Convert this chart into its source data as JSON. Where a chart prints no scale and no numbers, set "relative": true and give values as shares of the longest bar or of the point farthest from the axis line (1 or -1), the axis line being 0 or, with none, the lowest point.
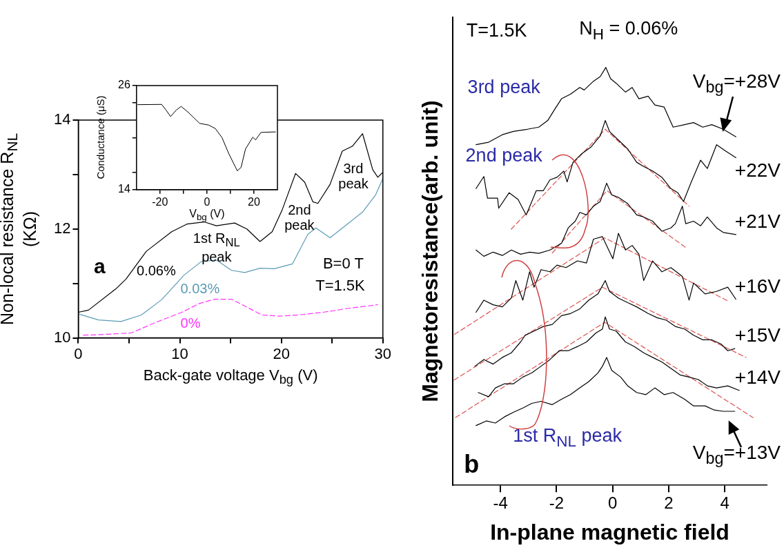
{
  "chart_data": [
    {
      "type": "line",
      "xlabel": "Back-gate voltage V$_{bg}$ (V)",
      "ylabel": "Non-local resistance R$_{NL}$ (KΩ)",
      "xlim": [
        0,
        30
      ],
      "ylim": [
        10,
        14
      ],
      "xticks": [
        0,
        {
          "value": 5,
          "label": null
        },
        10,
        {
          "value": 15,
          "label": null
        },
        20,
        {
          "value": 25,
          "label": null
        },
        30
      ],
      "yticks": [
        10,
        {
          "value": 11,
          "label": null
        },
        12,
        {
          "value": 13,
          "label": null
        },
        14
      ],
      "annotations": [
        "a",
        "B=0 T",
        "T=1.5K",
        "1st R$_{NL}$ peak",
        "2nd peak",
        "3rd peak"
      ],
      "series": [
        {
          "name": "0.06%",
          "color": "#000000",
          "x": [
            0,
            1,
            3.7,
            4.7,
            6.7,
            9.2,
            10.7,
            12.4,
            13.6,
            15.4,
            16.6,
            17.9,
            19.1,
            20.1,
            21.4,
            22.3,
            23.1,
            23.6,
            24.8,
            26.0,
            27.0,
            28.0,
            29.0,
            29.5,
            30
          ],
          "values": [
            10.47,
            10.51,
            10.9,
            11.08,
            11.59,
            11.95,
            12.09,
            12.13,
            12.06,
            12.11,
            12.0,
            11.77,
            11.95,
            12.36,
            13.02,
            12.86,
            12.5,
            12.47,
            12.82,
            13.43,
            13.52,
            13.75,
            13.09,
            12.95,
            13.04
          ]
        },
        {
          "name": "0.03%",
          "color": "#5b9bb5",
          "x": [
            0,
            2,
            4.2,
            6.2,
            8.2,
            10.4,
            12.1,
            13.6,
            15.1,
            16.4,
            17.9,
            19.3,
            21.1,
            22.6,
            23.4,
            24.8,
            26.5,
            28.0,
            29.3,
            30
          ],
          "values": [
            10.44,
            10.33,
            10.3,
            10.42,
            10.7,
            11.15,
            11.4,
            11.43,
            11.24,
            11.2,
            11.28,
            11.27,
            11.36,
            11.9,
            12.02,
            11.84,
            12.09,
            12.31,
            12.63,
            12.93
          ]
        },
        {
          "name": "0%",
          "color": "#ff33ff",
          "line_style": "dashed",
          "x": [
            0.5,
            2.2,
            5.2,
            7.7,
            10.2,
            11.9,
            13.4,
            15.1,
            18.1,
            19.8,
            21.6,
            24.1,
            26.5,
            29.5
          ],
          "values": [
            10.05,
            10.06,
            10.09,
            10.29,
            10.47,
            10.63,
            10.71,
            10.71,
            10.42,
            10.4,
            10.42,
            10.47,
            10.54,
            10.61
          ]
        }
      ]
    },
    {
      "type": "line",
      "xlabel": "V$_{bg}$ (V)",
      "ylabel": "Conductance (μS)",
      "xlim": [
        -30,
        30
      ],
      "ylim": [
        14,
        26
      ],
      "xticks": [
        -20,
        {
          "value": -10,
          "label": null
        },
        0,
        {
          "value": 10,
          "label": null
        },
        20
      ],
      "yticks": [
        14,
        {
          "value": 16,
          "label": null
        },
        {
          "value": 20,
          "label": null
        },
        {
          "value": 24,
          "label": null
        },
        26
      ],
      "series": [
        {
          "color": "#000000",
          "x": [
            -29.5,
            -19.3,
            -17.4,
            -15.5,
            -13.1,
            -11,
            -7.9,
            -3.1,
            0.7,
            3.5,
            6.4,
            9.2,
            12.9,
            14.5,
            16.4,
            19.5,
            20.7,
            23.0,
            29.2
          ],
          "values": [
            23.8,
            23.83,
            23.17,
            22.43,
            23.17,
            23.6,
            22.9,
            21.64,
            21.45,
            21.06,
            20.0,
            18.2,
            16.17,
            16.56,
            18.68,
            20.05,
            19.74,
            20.6,
            20.66
          ]
        }
      ]
    },
    {
      "type": "line",
      "relative": true,
      "xlabel": "In-plane magnetic field",
      "ylabel": "Magnetoresistance(arb. unit)",
      "xlim": [
        -5.7,
        5.5
      ],
      "xticks": [
        -4,
        -2,
        0,
        2,
        4
      ],
      "annotations": [
        "T=1.5K",
        "N$_{H}$ = 0.06%",
        "b",
        "3rd peak",
        "2nd peak",
        "1st R$_{NL}$ peak"
      ],
      "series": [
        {
          "name": "V$_{bg}$=+28V",
          "color": "#000000",
          "x": [
            -4.87,
            -4.42,
            -3.93,
            -3.53,
            -3.04,
            -2.63,
            -2.31,
            -2.07,
            -1.82,
            -1.5,
            -1.17,
            -1.01,
            -0.68,
            -0.44,
            -0.24,
            -0.07,
            0.13,
            0.46,
            0.7,
            0.94,
            1.27,
            1.51,
            1.84,
            2.16,
            2.57,
            2.89,
            3.22,
            3.54,
            3.95,
            4.4
          ],
          "values": [
            0.815,
            0.821,
            0.839,
            0.847,
            0.852,
            0.857,
            0.873,
            0.899,
            0.925,
            0.936,
            0.952,
            0.946,
            0.967,
            0.978,
            1,
            0.973,
            0.962,
            0.941,
            0.952,
            0.925,
            0.931,
            0.91,
            0.905,
            0.857,
            0.863,
            0.868,
            0.857,
            0.863,
            0.852,
            0.834
          ]
        },
        {
          "name": "+22V",
          "color": "#000000",
          "x": [
            -4.87,
            -4.59,
            -4.46,
            -4.1,
            -4.06,
            -3.69,
            -3.37,
            -3.08,
            -2.72,
            -2.47,
            -2.23,
            -1.98,
            -1.74,
            -1.62,
            -1.41,
            -1.09,
            -0.76,
            -0.44,
            -0.26,
            -0.11,
            0.21,
            0.54,
            0.86,
            1.11,
            1.43,
            1.76,
            2.08,
            2.33,
            2.53,
            2.81,
            3.14,
            3.38,
            3.71,
            4.03,
            4.4
          ],
          "values": [
            0.71,
            0.739,
            0.687,
            0.687,
            0.663,
            0.7,
            0.684,
            0.647,
            0.705,
            0.705,
            0.731,
            0.737,
            0.752,
            0.726,
            0.773,
            0.794,
            0.81,
            0.836,
            0.873,
            0.847,
            0.826,
            0.805,
            0.773,
            0.763,
            0.752,
            0.737,
            0.71,
            0.7,
            0.679,
            0.726,
            0.778,
            0.758,
            0.815,
            0.8,
            0.784
          ]
        },
        {
          "name": "+21V",
          "color": "#000000",
          "x": [
            -4.87,
            -4.59,
            -4.26,
            -3.93,
            -3.61,
            -3.28,
            -2.96,
            -2.63,
            -2.23,
            -1.82,
            -1.58,
            -1.33,
            -1.17,
            -0.93,
            -0.68,
            -0.44,
            -0.21,
            -0.03,
            0.21,
            0.54,
            0.86,
            1.11,
            1.43,
            1.76,
            2.08,
            2.24,
            2.49,
            2.61,
            2.89,
            3.14,
            3.38,
            3.71,
            3.95,
            4.4
          ],
          "values": [
            0.563,
            0.548,
            0.558,
            0.55,
            0.563,
            0.553,
            0.558,
            0.555,
            0.563,
            0.579,
            0.616,
            0.632,
            0.653,
            0.647,
            0.668,
            0.679,
            0.723,
            0.695,
            0.689,
            0.674,
            0.647,
            0.642,
            0.632,
            0.608,
            0.616,
            0.626,
            0.668,
            0.626,
            0.632,
            0.621,
            0.642,
            0.616,
            0.605,
            0.6
          ]
        },
        {
          "name": "+16V",
          "color": "#000000",
          "x": [
            -4.87,
            -4.59,
            -4.26,
            -3.93,
            -3.61,
            -3.45,
            -3.2,
            -2.96,
            -2.8,
            -2.55,
            -2.23,
            -1.98,
            -1.66,
            -1.25,
            -0.93,
            -0.68,
            -0.36,
            0.01,
            0.21,
            0.46,
            0.7,
            0.94,
            1.11,
            1.43,
            1.76,
            2.08,
            2.49,
            2.73,
            2.89,
            3.3,
            3.71,
            4.11,
            4.4
          ],
          "values": [
            0.414,
            0.443,
            0.432,
            0.427,
            0.448,
            0.49,
            0.443,
            0.511,
            0.474,
            0.516,
            0.511,
            0.527,
            0.521,
            0.537,
            0.532,
            0.589,
            0.595,
            0.542,
            0.603,
            0.563,
            0.574,
            0.553,
            0.49,
            0.537,
            0.511,
            0.521,
            0.5,
            0.443,
            0.484,
            0.458,
            0.464,
            0.474,
            0.445
          ]
        },
        {
          "name": "+15V",
          "color": "#000000",
          "x": [
            -4.91,
            -4.59,
            -4.26,
            -3.93,
            -3.61,
            -3.28,
            -3.12,
            -2.8,
            -2.47,
            -2.15,
            -1.82,
            -1.5,
            -1.17,
            -0.85,
            -0.52,
            -0.26,
            -0.11,
            0.21,
            0.54,
            0.86,
            1.27,
            1.59,
            1.92,
            2.24,
            2.57,
            2.89,
            3.22,
            3.54,
            3.87,
            4.11,
            4.36
          ],
          "values": [
            0.285,
            0.301,
            0.29,
            0.306,
            0.317,
            0.343,
            0.359,
            0.369,
            0.38,
            0.385,
            0.406,
            0.411,
            0.422,
            0.443,
            0.458,
            0.49,
            0.464,
            0.448,
            0.437,
            0.427,
            0.411,
            0.401,
            0.395,
            0.38,
            0.374,
            0.359,
            0.348,
            0.348,
            0.338,
            0.322,
            0.327
          ]
        },
        {
          "name": "+14V",
          "color": "#000000",
          "x": [
            -4.79,
            -4.42,
            -4.18,
            -3.85,
            -3.53,
            -3.2,
            -2.88,
            -2.55,
            -2.23,
            -1.9,
            -1.58,
            -1.25,
            -0.93,
            -0.6,
            -0.36,
            -0.26,
            -0.11,
            0.13,
            0.46,
            0.78,
            1.11,
            1.43,
            1.76,
            2.08,
            2.41,
            2.73,
            3.06,
            3.38,
            3.71,
            4.11,
            4.52
          ],
          "values": [
            0.222,
            0.212,
            0.233,
            0.243,
            0.243,
            0.259,
            0.269,
            0.285,
            0.301,
            0.322,
            0.322,
            0.332,
            0.343,
            0.364,
            0.374,
            0.403,
            0.374,
            0.369,
            0.343,
            0.332,
            0.317,
            0.306,
            0.295,
            0.28,
            0.264,
            0.259,
            0.253,
            0.238,
            0.233,
            0.238,
            0.227
          ]
        },
        {
          "name": "V$_{bg}$=+13V",
          "color": "#000000",
          "x": [
            -4.87,
            -4.5,
            -4.18,
            -3.85,
            -3.53,
            -3.2,
            -2.88,
            -2.55,
            -2.15,
            -1.82,
            -1.5,
            -1.17,
            -0.85,
            -0.52,
            -0.36,
            -0.21,
            -0.03,
            0.29,
            0.54,
            0.86,
            1.19,
            1.51,
            1.84,
            2.16,
            2.57,
            2.89,
            3.3,
            3.63,
            3.95,
            4.36
          ],
          "values": [
            0.143,
            0.154,
            0.149,
            0.164,
            0.175,
            0.185,
            0.196,
            0.201,
            0.193,
            0.206,
            0.217,
            0.233,
            0.248,
            0.269,
            0.285,
            0.306,
            0.275,
            0.259,
            0.238,
            0.222,
            0.217,
            0.233,
            0.217,
            0.222,
            0.206,
            0.19,
            0.19,
            0.18,
            0.177,
            0.177
          ]
        },
        {
          "line_style": "dashed",
          "color": "#d9534f",
          "x": [
            -3.61,
            -0.26,
            2.73
          ],
          "values": [
            0.613,
            0.852,
            0.668
          ]
        },
        {
          "line_style": "dashed",
          "color": "#d9534f",
          "x": [
            -2.15,
            -0.2,
            2.61
          ],
          "values": [
            0.556,
            0.705,
            0.569
          ]
        },
        {
          "line_style": "dashed",
          "color": "#d9534f",
          "x": [
            -5.64,
            -0.28,
            4.15
          ],
          "values": [
            0.361,
            0.592,
            0.44
          ]
        },
        {
          "line_style": "dashed",
          "color": "#d9534f",
          "x": [
            -5.65,
            -0.36,
            4.76
          ],
          "values": [
            0.252,
            0.474,
            0.306
          ]
        },
        {
          "line_style": "dashed",
          "color": "#d9534f",
          "x": [
            -5.6,
            -0.28,
            5.01
          ],
          "values": [
            0.162,
            0.39,
            0.162
          ]
        }
      ]
    }
  ]
}
